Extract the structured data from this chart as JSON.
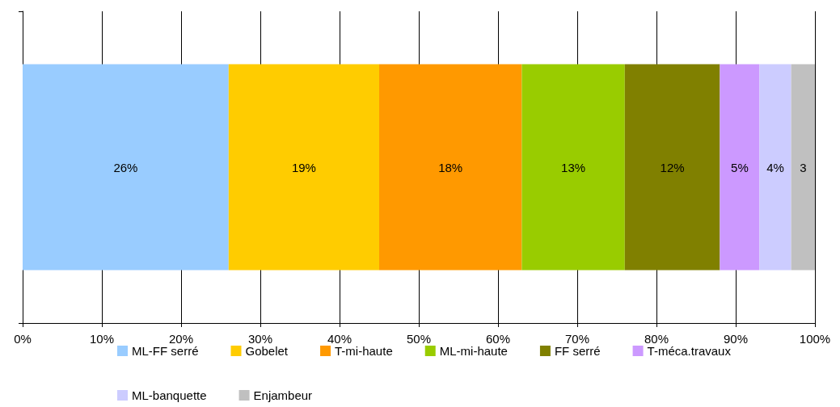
{
  "chart_data": {
    "type": "bar",
    "orientation": "horizontal",
    "stacked": true,
    "categories": [
      null
    ],
    "series": [
      {
        "name": "ML-FF serré",
        "color": "#99ccff",
        "values": [
          26
        ],
        "value_labels": [
          "26%"
        ]
      },
      {
        "name": "Gobelet",
        "color": "#ffcc00",
        "values": [
          19
        ],
        "value_labels": [
          "19%"
        ]
      },
      {
        "name": "T-mi-haute",
        "color": "#ff9900",
        "values": [
          18
        ],
        "value_labels": [
          "18%"
        ]
      },
      {
        "name": "ML-mi-haute",
        "color": "#99cc00",
        "values": [
          13
        ],
        "value_labels": [
          "13%"
        ]
      },
      {
        "name": "FF serré",
        "color": "#808000",
        "values": [
          12
        ],
        "value_labels": [
          "12%"
        ]
      },
      {
        "name": "T-méca.travaux",
        "color": "#cc99ff",
        "values": [
          5
        ],
        "value_labels": [
          "5%"
        ]
      },
      {
        "name": "ML-banquette",
        "color": "#ccccff",
        "values": [
          4
        ],
        "value_labels": [
          "4%"
        ]
      },
      {
        "name": "Enjambeur",
        "color": "#c0c0c0",
        "values": [
          3
        ],
        "value_labels": [
          "3"
        ]
      }
    ],
    "xlim": [
      0,
      100
    ],
    "xticks": [
      {
        "value": 0,
        "label": "0%"
      },
      {
        "value": 10,
        "label": "10%"
      },
      {
        "value": 20,
        "label": "20%"
      },
      {
        "value": 30,
        "label": "30%"
      },
      {
        "value": 40,
        "label": "40%"
      },
      {
        "value": 50,
        "label": "50%"
      },
      {
        "value": 60,
        "label": "60%"
      },
      {
        "value": 70,
        "label": "70%"
      },
      {
        "value": 80,
        "label": "80%"
      },
      {
        "value": 90,
        "label": "90%"
      },
      {
        "value": 100,
        "label": "100%"
      }
    ],
    "grid": "x",
    "legend": "bottom"
  }
}
